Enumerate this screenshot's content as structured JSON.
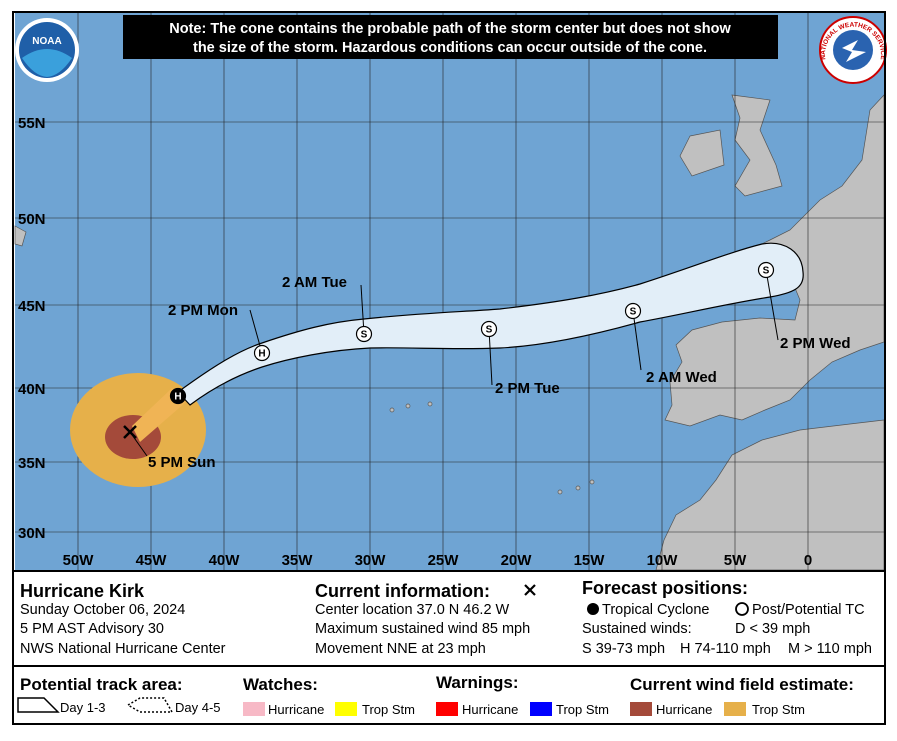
{
  "note": [
    "Note: The cone contains the probable path of the storm center but does not show",
    "the size of the storm. Hazardous conditions can occur outside of the cone."
  ],
  "logos": {
    "noaa": "NOAA",
    "nws": "NATIONAL WEATHER SERVICE"
  },
  "map": {
    "latitude_labels": [
      "55N",
      "50N",
      "45N",
      "40N",
      "35N",
      "30N"
    ],
    "longitude_labels": [
      "50W",
      "45W",
      "40W",
      "35W",
      "30W",
      "25W",
      "20W",
      "15W",
      "10W",
      "5W",
      "0"
    ],
    "current_label": "5 PM Sun",
    "forecast_points": [
      {
        "symbol": "H",
        "label": null
      },
      {
        "symbol": "H",
        "label": "2 PM Mon"
      },
      {
        "symbol": "S",
        "label": "2 AM Tue"
      },
      {
        "symbol": "S",
        "label": "2 PM Tue"
      },
      {
        "symbol": "S",
        "label": "2 AM Wed"
      },
      {
        "symbol": "S",
        "label": "2 PM Wed"
      }
    ]
  },
  "info": {
    "storm": {
      "name": "Hurricane Kirk",
      "date": "Sunday October 06, 2024",
      "advisory": "5 PM AST Advisory 30",
      "source": "NWS National Hurricane Center"
    },
    "current": {
      "title": "Current information:",
      "location": "Center location 37.0 N 46.2 W",
      "wind": "Maximum sustained wind 85 mph",
      "movement": "Movement NNE at 23 mph"
    },
    "forecast": {
      "title": "Forecast positions:",
      "tropical": "Tropical Cyclone",
      "post": "Post/Potential TC",
      "winds": "Sustained winds:",
      "d": "D < 39 mph",
      "s": "S 39-73 mph",
      "h": "H 74-110 mph",
      "m": "M > 110 mph"
    }
  },
  "legend": {
    "track": {
      "title": "Potential track area:",
      "day13": "Day 1-3",
      "day45": "Day 4-5"
    },
    "watches": {
      "title": "Watches:",
      "hurricane": "Hurricane",
      "tropical": "Trop Stm"
    },
    "warnings": {
      "title": "Warnings:",
      "hurricane": "Hurricane",
      "tropical": "Trop Stm"
    },
    "wind": {
      "title": "Current wind field estimate:",
      "hurricane": "Hurricane",
      "tropical": "Trop Stm"
    }
  }
}
